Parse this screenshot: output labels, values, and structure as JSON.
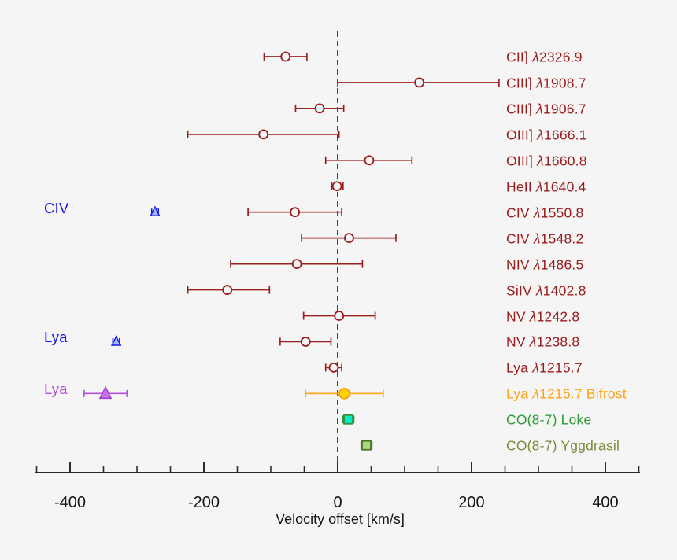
{
  "chart_data": {
    "type": "scatter",
    "title": "",
    "xlabel": "Velocity offset [km/s]",
    "xlim": [
      -453,
      452
    ],
    "xticks_major": [
      -400,
      -200,
      0,
      200,
      400
    ],
    "minor_tick_step": 50,
    "grid": false,
    "zero_line": {
      "x": 0,
      "style": "dashed",
      "color": "#1a1a1a"
    },
    "colors": {
      "background": "#f5f5f5",
      "axis": "#2b2b2b",
      "tick_label": "#151515"
    },
    "rows": [
      {
        "label": "CII] λ2326.9",
        "value": -78,
        "err_lo": -110,
        "err_hi": -46,
        "symbol": "open-circle",
        "text_color": "#9B1B1B",
        "line_color": "#9B2020",
        "symbol_stroke": "#9B1B1B",
        "symbol_fill": "#f5f5f5"
      },
      {
        "label": "CIII] λ1908.7",
        "value": 122,
        "err_lo": 0,
        "err_hi": 241,
        "symbol": "open-circle",
        "text_color": "#9B1B1B",
        "line_color": "#9B2020",
        "symbol_stroke": "#9B1B1B",
        "symbol_fill": "#f5f5f5"
      },
      {
        "label": "CIII] λ1906.7",
        "value": -27,
        "err_lo": -63,
        "err_hi": 9,
        "symbol": "open-circle",
        "text_color": "#9B1B1B",
        "line_color": "#9B2020",
        "symbol_stroke": "#9B1B1B",
        "symbol_fill": "#f5f5f5"
      },
      {
        "label": "OIII] λ1666.1",
        "value": -111,
        "err_lo": -224,
        "err_hi": 2,
        "symbol": "open-circle",
        "text_color": "#9B1B1B",
        "line_color": "#9B2020",
        "symbol_stroke": "#9B1B1B",
        "symbol_fill": "#f5f5f5"
      },
      {
        "label": "OIII] λ1660.8",
        "value": 47,
        "err_lo": -18,
        "err_hi": 111,
        "symbol": "open-circle",
        "text_color": "#9B1B1B",
        "line_color": "#9B2020",
        "symbol_stroke": "#9B1B1B",
        "symbol_fill": "#f5f5f5"
      },
      {
        "label": "HeII λ1640.4",
        "value": -1,
        "err_lo": -9,
        "err_hi": 8,
        "symbol": "open-circle",
        "text_color": "#9B1B1B",
        "line_color": "#9B2020",
        "symbol_stroke": "#9B1B1B",
        "symbol_fill": "#f5f5f5"
      },
      {
        "label": "CIV λ1550.8",
        "value": -64,
        "err_lo": -134,
        "err_hi": 6,
        "symbol": "open-circle",
        "text_color": "#9B1B1B",
        "line_color": "#9B2020",
        "symbol_stroke": "#9B1B1B",
        "symbol_fill": "#f5f5f5"
      },
      {
        "label": "CIV λ1548.2",
        "value": 17,
        "err_lo": -54,
        "err_hi": 87,
        "symbol": "open-circle",
        "text_color": "#9B1B1B",
        "line_color": "#9B2020",
        "symbol_stroke": "#9B1B1B",
        "symbol_fill": "#f5f5f5"
      },
      {
        "label": "NIV λ1486.5",
        "value": -61,
        "err_lo": -160,
        "err_hi": 37,
        "symbol": "open-circle",
        "text_color": "#9B1B1B",
        "line_color": "#9B2020",
        "symbol_stroke": "#9B1B1B",
        "symbol_fill": "#f5f5f5"
      },
      {
        "label": "SiIV λ1402.8",
        "value": -165,
        "err_lo": -224,
        "err_hi": -102,
        "symbol": "open-circle",
        "text_color": "#9B1B1B",
        "line_color": "#9B2020",
        "symbol_stroke": "#9B1B1B",
        "symbol_fill": "#f5f5f5"
      },
      {
        "label": "NV λ1242.8",
        "value": 2,
        "err_lo": -51,
        "err_hi": 56,
        "symbol": "open-circle",
        "text_color": "#9B1B1B",
        "line_color": "#9B2020",
        "symbol_stroke": "#9B1B1B",
        "symbol_fill": "#f5f5f5"
      },
      {
        "label": "NV λ1238.8",
        "value": -48,
        "err_lo": -86,
        "err_hi": -10,
        "symbol": "open-circle",
        "text_color": "#9B1B1B",
        "line_color": "#9B2020",
        "symbol_stroke": "#9B1B1B",
        "symbol_fill": "#f5f5f5"
      },
      {
        "label": "Lya λ1215.7",
        "value": -6,
        "err_lo": -18,
        "err_hi": 6,
        "symbol": "open-circle",
        "text_color": "#9B1B1B",
        "line_color": "#9B2020",
        "symbol_stroke": "#9B1B1B",
        "symbol_fill": "#f5f5f5"
      },
      {
        "label": "Lya λ1215.7 Bifrost",
        "value": 10,
        "err_lo": -48,
        "err_hi": 68,
        "symbol": "filled-circle",
        "text_color": "#FFA217",
        "line_color": "#FFA928",
        "symbol_stroke": "#FF9800",
        "symbol_fill": "#FFD400"
      },
      {
        "label": "CO(8-7) Loke",
        "value": 16,
        "err_lo": 8,
        "err_hi": 24,
        "symbol": "square",
        "text_color": "#2E9B33",
        "line_color": "#2E8B47",
        "symbol_stroke": "#3B8E3B",
        "symbol_fill": "#00EFC4"
      },
      {
        "label": "CO(8-7) Yggdrasil",
        "value": 43,
        "err_lo": 35,
        "err_hi": 51,
        "symbol": "square",
        "text_color": "#7C8B3D",
        "line_color": "#5A7A2E",
        "symbol_stroke": "#55702F",
        "symbol_fill": "#A4DC7E"
      }
    ],
    "absorption_annotations": [
      {
        "label": "CIV",
        "value": -273,
        "err_lo": -278,
        "err_hi": -268,
        "row_index": 6,
        "symbol": "triangle",
        "text_color": "#1717E8",
        "line_color": "#1717E8",
        "symbol_stroke": "#1717E8",
        "symbol_fill": "#9DB8F5",
        "size": "small"
      },
      {
        "label": "Lya",
        "value": -331,
        "err_lo": -336,
        "err_hi": -326,
        "row_index": 11,
        "symbol": "triangle",
        "text_color": "#1717E8",
        "line_color": "#1717E8",
        "symbol_stroke": "#1717E8",
        "symbol_fill": "#9DB8F5",
        "size": "small"
      },
      {
        "label": "Lya",
        "value": -347,
        "err_lo": -379,
        "err_hi": -315,
        "row_index": 13,
        "symbol": "triangle",
        "text_color": "#B44FD8",
        "line_color": "#B44FD8",
        "symbol_stroke": "#9C3BCF",
        "symbol_fill": "#CD72E3",
        "size": "large"
      }
    ]
  },
  "layout_text": {
    "tick_labels": [
      "-400",
      "-200",
      "0",
      "200",
      "400"
    ]
  }
}
